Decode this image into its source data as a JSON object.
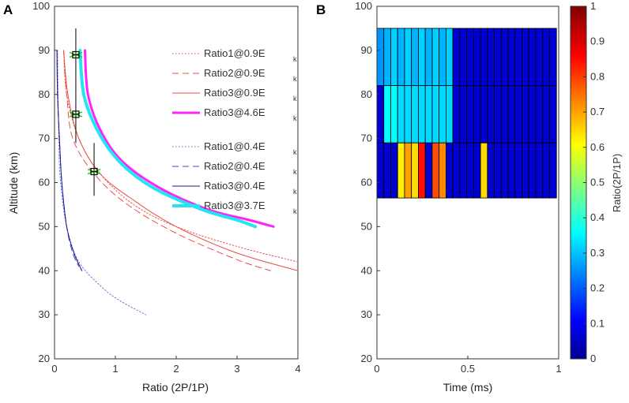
{
  "chart_data": [
    {
      "panel": "A",
      "type": "line",
      "xlabel": "Ratio (2P/1P)",
      "ylabel": "Altitude (km)",
      "xlim": [
        0,
        4
      ],
      "ylim": [
        20,
        100
      ],
      "xticks": [
        "0",
        "1",
        "2",
        "3",
        "4"
      ],
      "yticks": [
        "20",
        "30",
        "40",
        "50",
        "60",
        "70",
        "80",
        "90",
        "100"
      ],
      "legend_sub": "k",
      "series": [
        {
          "name": "Ratio1@0.9E",
          "color": "#e8504a",
          "style": "dotted",
          "width": 1,
          "points": [
            [
              0.15,
              90
            ],
            [
              0.2,
              80
            ],
            [
              0.4,
              70
            ],
            [
              0.75,
              62
            ],
            [
              1.3,
              55
            ],
            [
              2.0,
              50
            ],
            [
              3.0,
              45.5
            ],
            [
              4.0,
              42
            ]
          ]
        },
        {
          "name": "Ratio2@0.9E",
          "color": "#e8504a",
          "style": "dashed",
          "width": 1,
          "points": [
            [
              0.15,
              90
            ],
            [
              0.2,
              80
            ],
            [
              0.3,
              70
            ],
            [
              0.65,
              62
            ],
            [
              1.2,
              55
            ],
            [
              2.0,
              48.5
            ],
            [
              3.0,
              42.5
            ],
            [
              3.55,
              40
            ]
          ]
        },
        {
          "name": "Ratio3@0.9E",
          "color": "#e8504a",
          "style": "solid",
          "width": 1,
          "points": [
            [
              0.15,
              90
            ],
            [
              0.22,
              80
            ],
            [
              0.4,
              70
            ],
            [
              0.75,
              62
            ],
            [
              1.3,
              56
            ],
            [
              2.0,
              50
            ],
            [
              3.0,
              44
            ],
            [
              4.0,
              40
            ]
          ]
        },
        {
          "name": "Ratio3@4.6E",
          "color": "#ff22ff",
          "style": "solid",
          "width": 3,
          "points": [
            [
              0.5,
              90
            ],
            [
              0.55,
              80
            ],
            [
              0.75,
              72
            ],
            [
              1.1,
              65
            ],
            [
              1.7,
              59
            ],
            [
              2.5,
              54
            ],
            [
              3.2,
              51.5
            ],
            [
              3.6,
              50
            ]
          ]
        },
        {
          "name": "Ratio1@0.4E",
          "color": "#6670e0",
          "style": "dotted",
          "width": 1,
          "points": [
            [
              0.05,
              90
            ],
            [
              0.07,
              70
            ],
            [
              0.1,
              60
            ],
            [
              0.2,
              50
            ],
            [
              0.4,
              42
            ],
            [
              0.8,
              36
            ],
            [
              1.1,
              33
            ],
            [
              1.5,
              30
            ]
          ]
        },
        {
          "name": "Ratio2@0.4E",
          "color": "#3b4bd6",
          "style": "dashed",
          "width": 1,
          "points": [
            [
              0.04,
              90
            ],
            [
              0.05,
              80
            ],
            [
              0.08,
              70
            ],
            [
              0.12,
              60
            ],
            [
              0.2,
              50
            ],
            [
              0.3,
              44
            ],
            [
              0.4,
              41
            ]
          ]
        },
        {
          "name": "Ratio3@0.4E",
          "color": "#1a1a8c",
          "style": "solid",
          "width": 1,
          "points": [
            [
              0.04,
              90
            ],
            [
              0.05,
              80
            ],
            [
              0.08,
              70
            ],
            [
              0.12,
              60
            ],
            [
              0.2,
              50
            ],
            [
              0.32,
              44
            ],
            [
              0.45,
              40
            ]
          ]
        },
        {
          "name": "Ratio3@3.7E",
          "color": "#22e6f0",
          "style": "solid",
          "width": 4,
          "points": [
            [
              0.42,
              90
            ],
            [
              0.48,
              80
            ],
            [
              0.7,
              72
            ],
            [
              1.05,
              65
            ],
            [
              1.6,
              59
            ],
            [
              2.4,
              54
            ],
            [
              3.0,
              51.5
            ],
            [
              3.3,
              50
            ]
          ]
        }
      ],
      "error_points": [
        {
          "x": 0.35,
          "y": 89,
          "ylow": 82,
          "yhigh": 95
        },
        {
          "x": 0.35,
          "y": 75.5,
          "ylow": 69,
          "yhigh": 82
        },
        {
          "x": 0.65,
          "y": 62.5,
          "ylow": 57,
          "yhigh": 69
        }
      ]
    },
    {
      "panel": "B",
      "type": "heatmap",
      "xlabel": "Time (ms)",
      "ylabel": "",
      "xlim": [
        0,
        1
      ],
      "ylim": [
        20,
        100
      ],
      "xticks": [
        "0",
        "0.5",
        "1"
      ],
      "yticks": [
        "20",
        "30",
        "40",
        "50",
        "60",
        "70",
        "80",
        "90",
        "100"
      ],
      "bin_width": 0.038,
      "rows": [
        {
          "y0": 82,
          "y1": 95,
          "cells": [
            0.27,
            0.3,
            0.33,
            0.3,
            0.33,
            0.3,
            0.33,
            0.3,
            0.33,
            0.3,
            0.33,
            0.08,
            0.08,
            0.08,
            0.08,
            0.08,
            0.08,
            0.08,
            0.08,
            0.08,
            0.08,
            0.08,
            0.08,
            0.08,
            0.08,
            0.08
          ]
        },
        {
          "y0": 69,
          "y1": 82,
          "cells": [
            0.08,
            0.38,
            0.38,
            0.34,
            0.34,
            0.34,
            0.34,
            0.34,
            0.34,
            0.34,
            0.34,
            0.08,
            0.08,
            0.08,
            0.08,
            0.08,
            0.08,
            0.08,
            0.08,
            0.08,
            0.08,
            0.08,
            0.08,
            0.08,
            0.08,
            0.08
          ]
        },
        {
          "y0": 56.5,
          "y1": 69,
          "cells": [
            0.08,
            0.08,
            0.08,
            0.64,
            0.72,
            0.66,
            0.86,
            0.08,
            0.8,
            0.74,
            0.08,
            0.08,
            0.08,
            0.08,
            0.08,
            0.66,
            0.08,
            0.08,
            0.08,
            0.08,
            0.08,
            0.08,
            0.08,
            0.08,
            0.08,
            0.08
          ]
        }
      ],
      "colorbar": {
        "label": "Ratio(2P/1P)",
        "range": [
          0,
          1
        ],
        "ticks": [
          "0",
          "0.1",
          "0.2",
          "0.3",
          "0.4",
          "0.5",
          "0.6",
          "0.7",
          "0.8",
          "0.9",
          "1"
        ]
      }
    }
  ]
}
